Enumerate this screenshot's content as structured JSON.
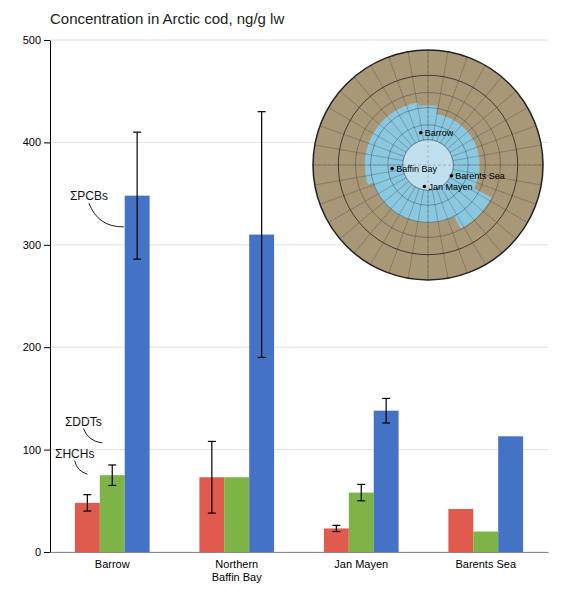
{
  "chart_data": {
    "type": "bar",
    "title": "Concentration in Arctic cod, ng/g lw",
    "categories": [
      "Barrow",
      "Northern\nBaffin Bay",
      "Jan Mayen",
      "Barents Sea"
    ],
    "series": [
      {
        "name": "ΣHCHs",
        "color": "#E05A4E",
        "values": [
          48,
          73,
          23,
          42
        ],
        "errors": [
          8,
          35,
          3,
          0
        ]
      },
      {
        "name": "ΣDDTs",
        "color": "#7DB347",
        "values": [
          75,
          73,
          58,
          20
        ],
        "errors": [
          10,
          0,
          8,
          0
        ]
      },
      {
        "name": "ΣPCBs",
        "color": "#4472C4",
        "values": [
          348,
          310,
          138,
          113
        ],
        "errors": [
          62,
          120,
          12,
          0
        ]
      }
    ],
    "ylim": [
      0,
      500
    ],
    "yticks": [
      0,
      100,
      200,
      300,
      400,
      500
    ],
    "grid": true,
    "annotations": [
      "Barrow",
      "Baffin Bay",
      "Barents Sea",
      "Jan Mayen"
    ]
  }
}
